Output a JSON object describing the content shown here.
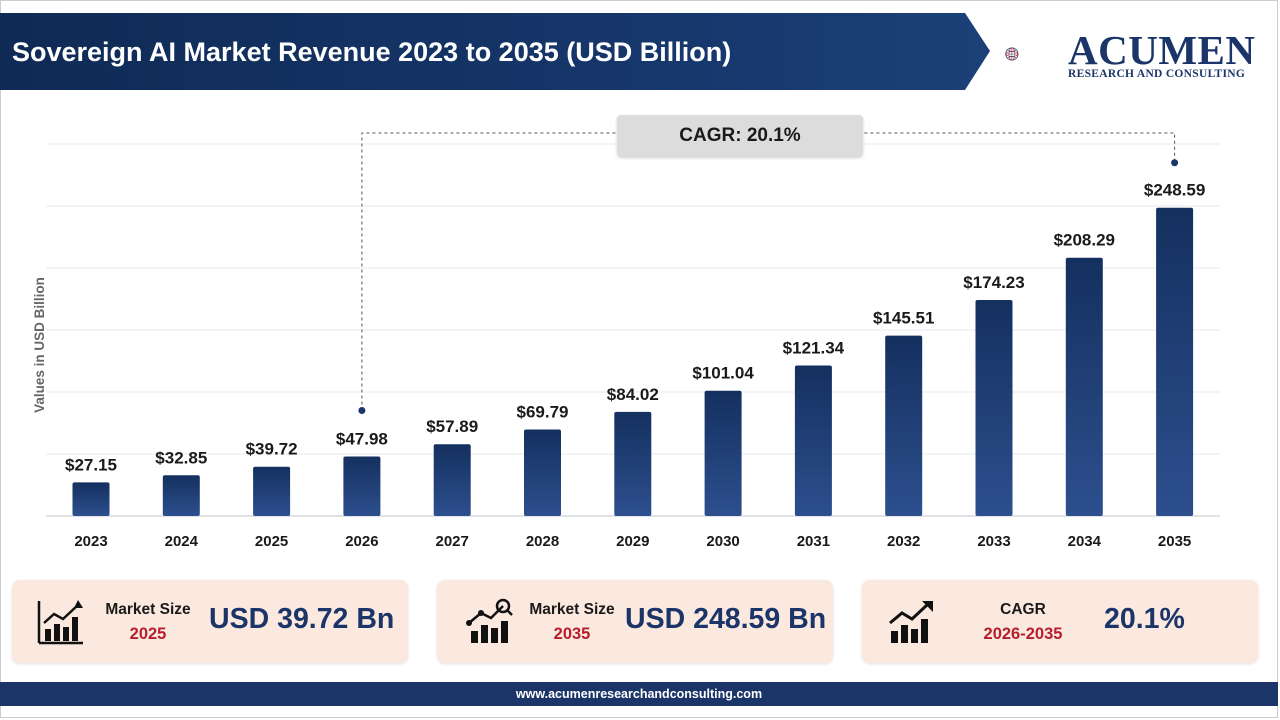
{
  "header": {
    "title": "Sovereign AI Market Revenue 2023 to 2035 (USD Billion)"
  },
  "logo": {
    "word": "ACUMEN",
    "subtitle": "RESEARCH AND CONSULTING",
    "icon": "globe-icon"
  },
  "chart_data": {
    "type": "bar",
    "categories": [
      "2023",
      "2024",
      "2025",
      "2026",
      "2027",
      "2028",
      "2029",
      "2030",
      "2031",
      "2032",
      "2033",
      "2034",
      "2035"
    ],
    "values": [
      27.15,
      32.85,
      39.72,
      47.98,
      57.89,
      69.79,
      84.02,
      101.04,
      121.34,
      145.51,
      174.23,
      208.29,
      248.59
    ],
    "value_labels": [
      "$27.15",
      "$32.85",
      "$39.72",
      "$47.98",
      "$57.89",
      "$69.79",
      "$84.02",
      "$101.04",
      "$121.34",
      "$145.51",
      "$174.23",
      "$208.29",
      "$248.59"
    ],
    "ylabel": "Values in USD Billion",
    "ylim": [
      0,
      300
    ],
    "grid": true,
    "bar_color": "#1b3569",
    "annotation": {
      "label": "CAGR: 20.1%",
      "from_category": "2026",
      "to_category": "2035"
    }
  },
  "cards": [
    {
      "icon": "bar-chart-icon",
      "label": "Market Size",
      "year": "2025",
      "value": "USD 39.72 Bn"
    },
    {
      "icon": "growth-chart-icon",
      "label": "Market Size",
      "year": "2035",
      "value": "USD 248.59 Bn"
    },
    {
      "icon": "trend-up-icon",
      "label": "CAGR",
      "year": "2026-2035",
      "value": "20.1%"
    }
  ],
  "footer": {
    "url": "www.acumenresearchandconsulting.com"
  },
  "colors": {
    "navy": "#1b3569",
    "accent_red": "#b51e2a",
    "card_bg": "#fbe8df"
  }
}
